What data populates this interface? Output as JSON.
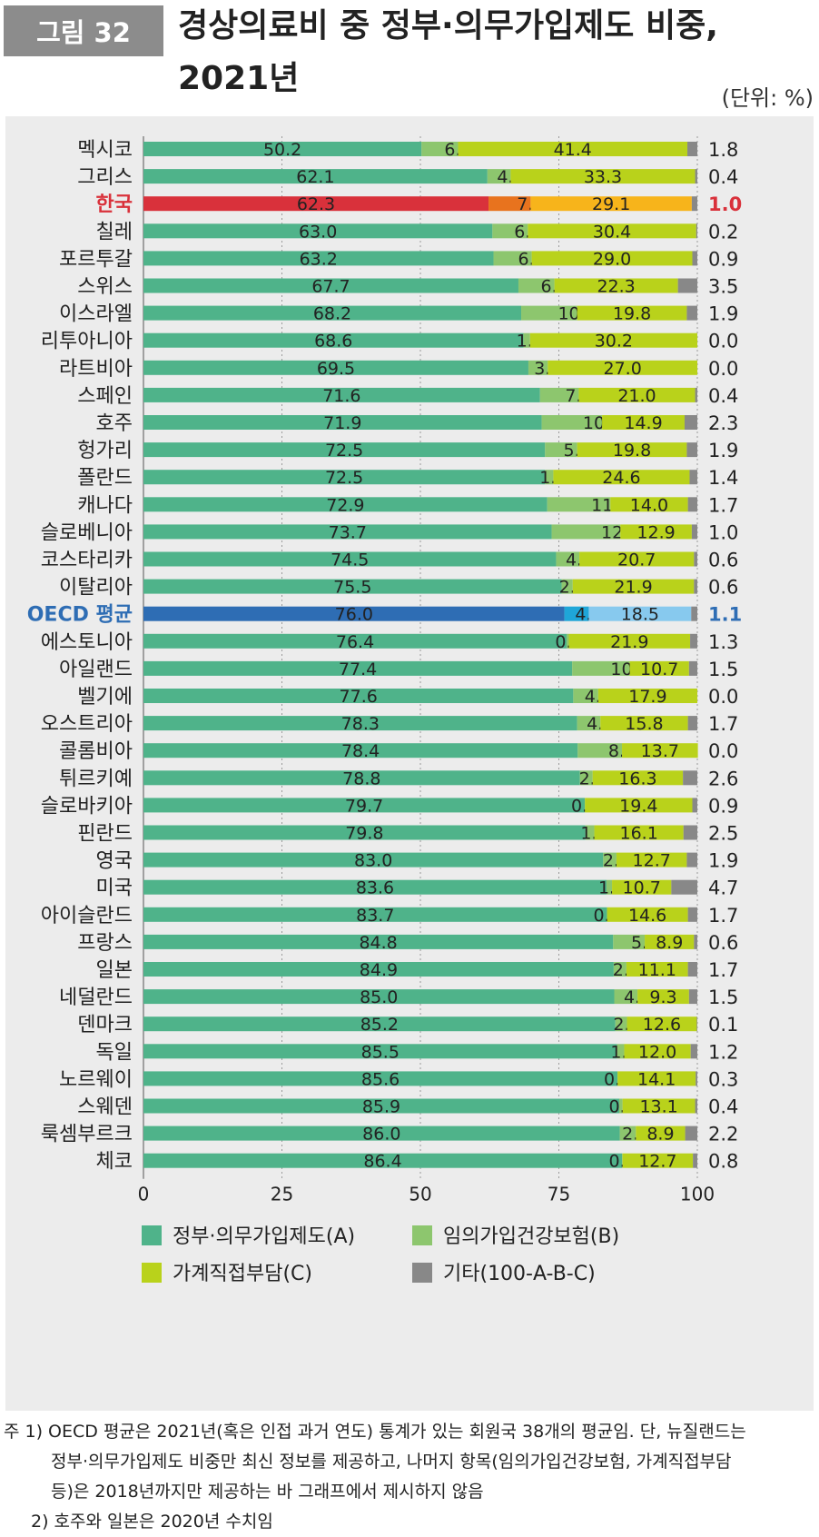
{
  "header": {
    "figure_tag": "그림 32",
    "title_line1": "경상의료비 중 정부·의무가입제도 비중,",
    "title_line2": "2021년",
    "unit": "(단위: %)"
  },
  "chart_data": {
    "type": "bar",
    "orientation": "horizontal",
    "stacked": true,
    "categories": [
      "멕시코",
      "그리스",
      "한국",
      "칠레",
      "포르투갈",
      "스위스",
      "이스라엘",
      "리투아니아",
      "라트비아",
      "스페인",
      "호주",
      "헝가리",
      "폴란드",
      "캐나다",
      "슬로베니아",
      "코스타리카",
      "이탈리아",
      "OECD 평균",
      "에스토니아",
      "아일랜드",
      "벨기에",
      "오스트리아",
      "콜롬비아",
      "튀르키예",
      "슬로바키아",
      "핀란드",
      "영국",
      "미국",
      "아이슬란드",
      "프랑스",
      "일본",
      "네덜란드",
      "덴마크",
      "독일",
      "노르웨이",
      "스웨덴",
      "룩셈부르크",
      "체코"
    ],
    "series": [
      {
        "name": "정부·의무가입제도(A)",
        "color": "#4fb38a",
        "values": [
          50.2,
          62.1,
          62.3,
          63.0,
          63.2,
          67.7,
          68.2,
          68.6,
          69.5,
          71.6,
          71.9,
          72.5,
          72.5,
          72.9,
          73.7,
          74.5,
          75.5,
          76.0,
          76.4,
          77.4,
          77.6,
          78.3,
          78.4,
          78.8,
          79.7,
          79.8,
          83.0,
          83.6,
          83.7,
          84.8,
          84.9,
          85.0,
          85.2,
          85.5,
          85.6,
          85.9,
          86.0,
          86.4
        ]
      },
      {
        "name": "임의가입건강보험(B)",
        "color": "#8dc66e",
        "values": [
          6.6,
          4.2,
          7.6,
          6.4,
          6.9,
          6.5,
          10.1,
          1.2,
          3.5,
          7.0,
          10.9,
          5.8,
          1.5,
          11.4,
          12.4,
          4.2,
          2.0,
          4.4,
          0.4,
          10.4,
          4.5,
          4.2,
          8.0,
          2.3,
          0.0,
          1.6,
          2.4,
          1.0,
          0.0,
          5.7,
          2.3,
          4.2,
          2.1,
          1.3,
          0.0,
          0.6,
          2.9,
          0.1
        ]
      },
      {
        "name": "가계직접부담(C)",
        "color": "#b9d21b",
        "values": [
          41.4,
          33.3,
          29.1,
          30.4,
          29.0,
          22.3,
          19.8,
          30.2,
          27.0,
          21.0,
          14.9,
          19.8,
          24.6,
          14.0,
          12.9,
          20.7,
          21.9,
          18.5,
          21.9,
          10.7,
          17.9,
          15.8,
          13.7,
          16.3,
          19.4,
          16.1,
          12.7,
          10.7,
          14.6,
          8.9,
          11.1,
          9.3,
          12.6,
          12.0,
          14.1,
          13.1,
          8.9,
          12.7
        ]
      },
      {
        "name": "기타(100-A-B-C)",
        "color": "#888888",
        "values": [
          1.8,
          0.4,
          1.0,
          0.2,
          0.9,
          3.5,
          1.9,
          0.0,
          0.0,
          0.4,
          2.3,
          1.9,
          1.4,
          1.7,
          1.0,
          0.6,
          0.6,
          1.1,
          1.3,
          1.5,
          0.0,
          1.7,
          0.0,
          2.6,
          0.9,
          2.5,
          1.9,
          4.7,
          1.7,
          0.6,
          1.7,
          1.5,
          0.1,
          1.2,
          0.3,
          0.4,
          2.2,
          0.8
        ]
      }
    ],
    "highlights": {
      "한국": {
        "label_color": "#d9313b",
        "colors": [
          "#d9313b",
          "#e8731e",
          "#f7b41b",
          "#888888"
        ]
      },
      "OECD 평균": {
        "label_color": "#2e6db4",
        "colors": [
          "#2e6db4",
          "#1fa6d8",
          "#87c9ee",
          "#888888"
        ]
      }
    },
    "xlim": [
      0,
      100
    ],
    "xticks": [
      0,
      25,
      50,
      75,
      100
    ],
    "grid": "vertical dotted",
    "legend_position": "bottom"
  },
  "notes": [
    "주 1) OECD 평균은 2021년(혹은 인접 과거 연도) 통계가 있는 회원국 38개의 평균임. 단, 뉴질랜드는",
    "정부·의무가입제도 비중만 최신 정보를 제공하고, 나머지 항목(임의가입건강보험, 가계직접부담",
    "등)은 2018년까지만 제공하는 바 그래프에서 제시하지 않음",
    "2) 호주와 일본은 2020년 수치임"
  ]
}
